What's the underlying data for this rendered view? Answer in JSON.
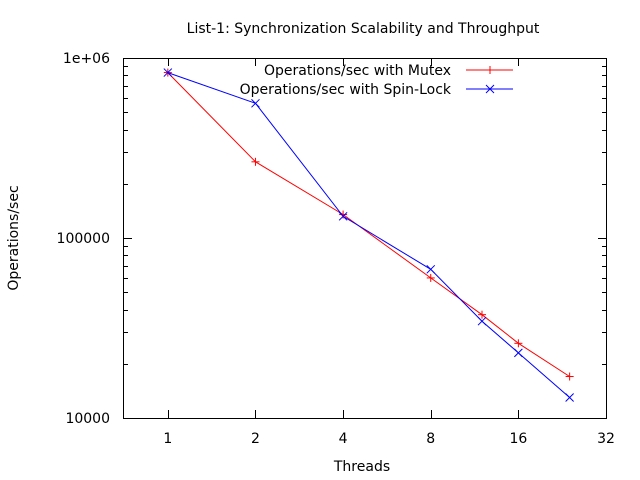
{
  "chart_data": {
    "type": "line",
    "title": "List-1: Synchronization Scalability and Throughput",
    "xlabel": "Threads",
    "ylabel": "Operations/sec",
    "x_scale": "log2",
    "y_scale": "log10",
    "xlim": [
      0.707,
      32
    ],
    "ylim": [
      10000,
      1000000
    ],
    "xticks": [
      1,
      2,
      4,
      8,
      16,
      32
    ],
    "xtick_labels": [
      "1",
      "2",
      "4",
      "8",
      "16",
      "32"
    ],
    "yticks": [
      10000,
      100000,
      1000000
    ],
    "ytick_labels": [
      "10000",
      "100000",
      "1e+06"
    ],
    "grid": false,
    "legend_position": "top-right",
    "series": [
      {
        "name": "Operations/sec with Mutex",
        "color": "#ff0000",
        "marker": "plus",
        "x": [
          1,
          2,
          4,
          8,
          12,
          16,
          24
        ],
        "y": [
          830000,
          265000,
          135000,
          60000,
          37500,
          26000,
          17000
        ]
      },
      {
        "name": "Operations/sec with Spin-Lock",
        "color": "#0000ff",
        "marker": "cross",
        "x": [
          1,
          2,
          4,
          8,
          12,
          16,
          24
        ],
        "y": [
          830000,
          560000,
          132000,
          67000,
          34500,
          23000,
          13000
        ]
      }
    ]
  }
}
